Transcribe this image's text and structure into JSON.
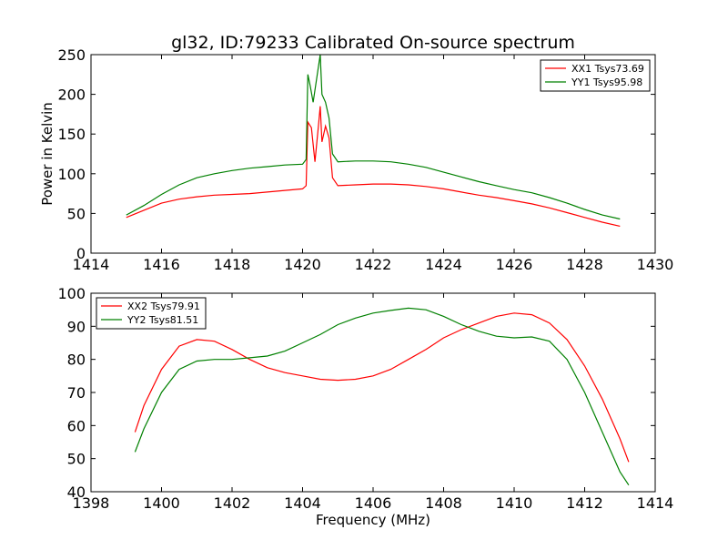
{
  "title": "gl32, ID:79233 Calibrated On-source spectrum",
  "chart_data": [
    {
      "type": "line",
      "ylabel": "Power in Kelvin",
      "xlim": [
        1414,
        1430
      ],
      "ylim": [
        0,
        250
      ],
      "xticks": [
        1414,
        1416,
        1418,
        1420,
        1422,
        1424,
        1426,
        1428,
        1430
      ],
      "yticks": [
        0,
        50,
        100,
        150,
        200,
        250
      ],
      "legend_position": "top-right",
      "series": [
        {
          "name": "XX1 Tsys73.69",
          "color": "#ff0000",
          "x": [
            1415.0,
            1415.5,
            1416.0,
            1416.5,
            1417.0,
            1417.5,
            1418.0,
            1418.5,
            1419.0,
            1419.5,
            1420.0,
            1420.1,
            1420.15,
            1420.25,
            1420.35,
            1420.45,
            1420.5,
            1420.55,
            1420.65,
            1420.75,
            1420.85,
            1421.0,
            1421.5,
            1422.0,
            1422.5,
            1423.0,
            1423.5,
            1424.0,
            1424.5,
            1425.0,
            1425.5,
            1426.0,
            1426.5,
            1427.0,
            1427.5,
            1428.0,
            1428.5,
            1429.0
          ],
          "y": [
            45,
            54,
            63,
            68,
            71,
            73,
            74,
            75,
            77,
            79,
            81,
            85,
            165,
            158,
            115,
            160,
            185,
            140,
            160,
            145,
            95,
            85,
            86,
            87,
            87,
            86,
            84,
            81,
            77,
            73,
            70,
            66,
            62,
            57,
            51,
            45,
            39,
            34
          ]
        },
        {
          "name": "YY1 Tsys95.98",
          "color": "#008000",
          "x": [
            1415.0,
            1415.5,
            1416.0,
            1416.5,
            1417.0,
            1417.5,
            1418.0,
            1418.5,
            1419.0,
            1419.5,
            1420.0,
            1420.1,
            1420.15,
            1420.22,
            1420.3,
            1420.4,
            1420.5,
            1420.55,
            1420.65,
            1420.75,
            1420.85,
            1421.0,
            1421.5,
            1422.0,
            1422.5,
            1423.0,
            1423.5,
            1424.0,
            1424.5,
            1425.0,
            1425.5,
            1426.0,
            1426.5,
            1427.0,
            1427.5,
            1428.0,
            1428.5,
            1429.0
          ],
          "y": [
            48,
            60,
            74,
            86,
            95,
            100,
            104,
            107,
            109,
            111,
            112,
            118,
            225,
            210,
            190,
            220,
            250,
            200,
            190,
            170,
            125,
            115,
            116,
            116,
            115,
            112,
            108,
            102,
            96,
            90,
            85,
            80,
            76,
            70,
            63,
            55,
            48,
            43
          ]
        }
      ]
    },
    {
      "type": "line",
      "xlabel": "Frequency (MHz)",
      "xlim": [
        1398,
        1414
      ],
      "ylim": [
        40,
        100
      ],
      "xticks": [
        1398,
        1400,
        1402,
        1404,
        1406,
        1408,
        1410,
        1412,
        1414
      ],
      "yticks": [
        40,
        50,
        60,
        70,
        80,
        90,
        100
      ],
      "legend_position": "top-left",
      "series": [
        {
          "name": "XX2 Tsys79.91",
          "color": "#ff0000",
          "x": [
            1399.25,
            1399.5,
            1400.0,
            1400.5,
            1401.0,
            1401.5,
            1402.0,
            1402.5,
            1403.0,
            1403.5,
            1404.0,
            1404.5,
            1405.0,
            1405.5,
            1406.0,
            1406.5,
            1407.0,
            1407.5,
            1408.0,
            1408.5,
            1409.0,
            1409.5,
            1410.0,
            1410.5,
            1411.0,
            1411.5,
            1412.0,
            1412.5,
            1413.0,
            1413.25
          ],
          "y": [
            58,
            66,
            77,
            84,
            86,
            85.5,
            83,
            80,
            77.5,
            76,
            75,
            74,
            73.7,
            74,
            75,
            77,
            80,
            83,
            86.5,
            89,
            91,
            93,
            94,
            93.5,
            91,
            86,
            78,
            68,
            56,
            49
          ]
        },
        {
          "name": "YY2 Tsys81.51",
          "color": "#008000",
          "x": [
            1399.25,
            1399.5,
            1400.0,
            1400.5,
            1401.0,
            1401.5,
            1402.0,
            1402.5,
            1403.0,
            1403.5,
            1404.0,
            1404.5,
            1405.0,
            1405.5,
            1406.0,
            1406.5,
            1407.0,
            1407.5,
            1408.0,
            1408.5,
            1409.0,
            1409.5,
            1410.0,
            1410.5,
            1411.0,
            1411.5,
            1412.0,
            1412.5,
            1413.0,
            1413.25
          ],
          "y": [
            52,
            59,
            70,
            77,
            79.5,
            80,
            80,
            80.5,
            81,
            82.5,
            85,
            87.5,
            90.5,
            92.5,
            94,
            94.8,
            95.5,
            95,
            93,
            90.5,
            88.5,
            87,
            86.5,
            86.8,
            85.5,
            80,
            70,
            58,
            46,
            42
          ]
        }
      ]
    }
  ]
}
